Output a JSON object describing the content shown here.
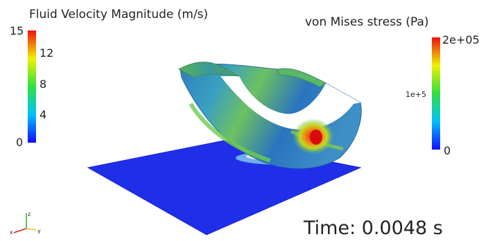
{
  "fluid_legend": {
    "title": "Fluid Velocity Magnitude (m/s)",
    "ticks": [
      "15",
      "12",
      "8",
      "4",
      "0"
    ]
  },
  "stress_legend": {
    "title": "von Mises stress (Pa)",
    "ticks": [
      "2e+05",
      "1e+5",
      "0"
    ]
  },
  "time": {
    "label": "Time: 0.0048 s"
  },
  "axes": {
    "x": "x",
    "y": "y",
    "z": "z"
  }
}
